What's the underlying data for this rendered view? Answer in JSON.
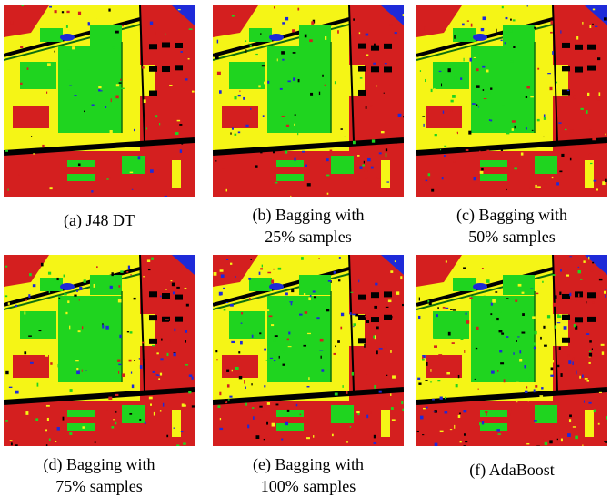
{
  "panels": [
    {
      "caption_line1": "(a) J48 DT",
      "caption_line2": "",
      "variant": 0
    },
    {
      "caption_line1": "(b) Bagging with",
      "caption_line2": "25% samples",
      "variant": 1
    },
    {
      "caption_line1": "(c) Bagging with",
      "caption_line2": "50% samples",
      "variant": 2
    },
    {
      "caption_line1": "(d) Bagging with",
      "caption_line2": "75% samples",
      "variant": 3
    },
    {
      "caption_line1": "(e) Bagging with",
      "caption_line2": "100% samples",
      "variant": 4
    },
    {
      "caption_line1": "(f) AdaBoost",
      "caption_line2": "",
      "variant": 5
    }
  ],
  "colors": {
    "red": "#d41f1f",
    "green": "#1fd41f",
    "yellow": "#f5f516",
    "blue": "#1e2ad8",
    "black": "#000000",
    "dark_green": "#0e6e0e"
  }
}
